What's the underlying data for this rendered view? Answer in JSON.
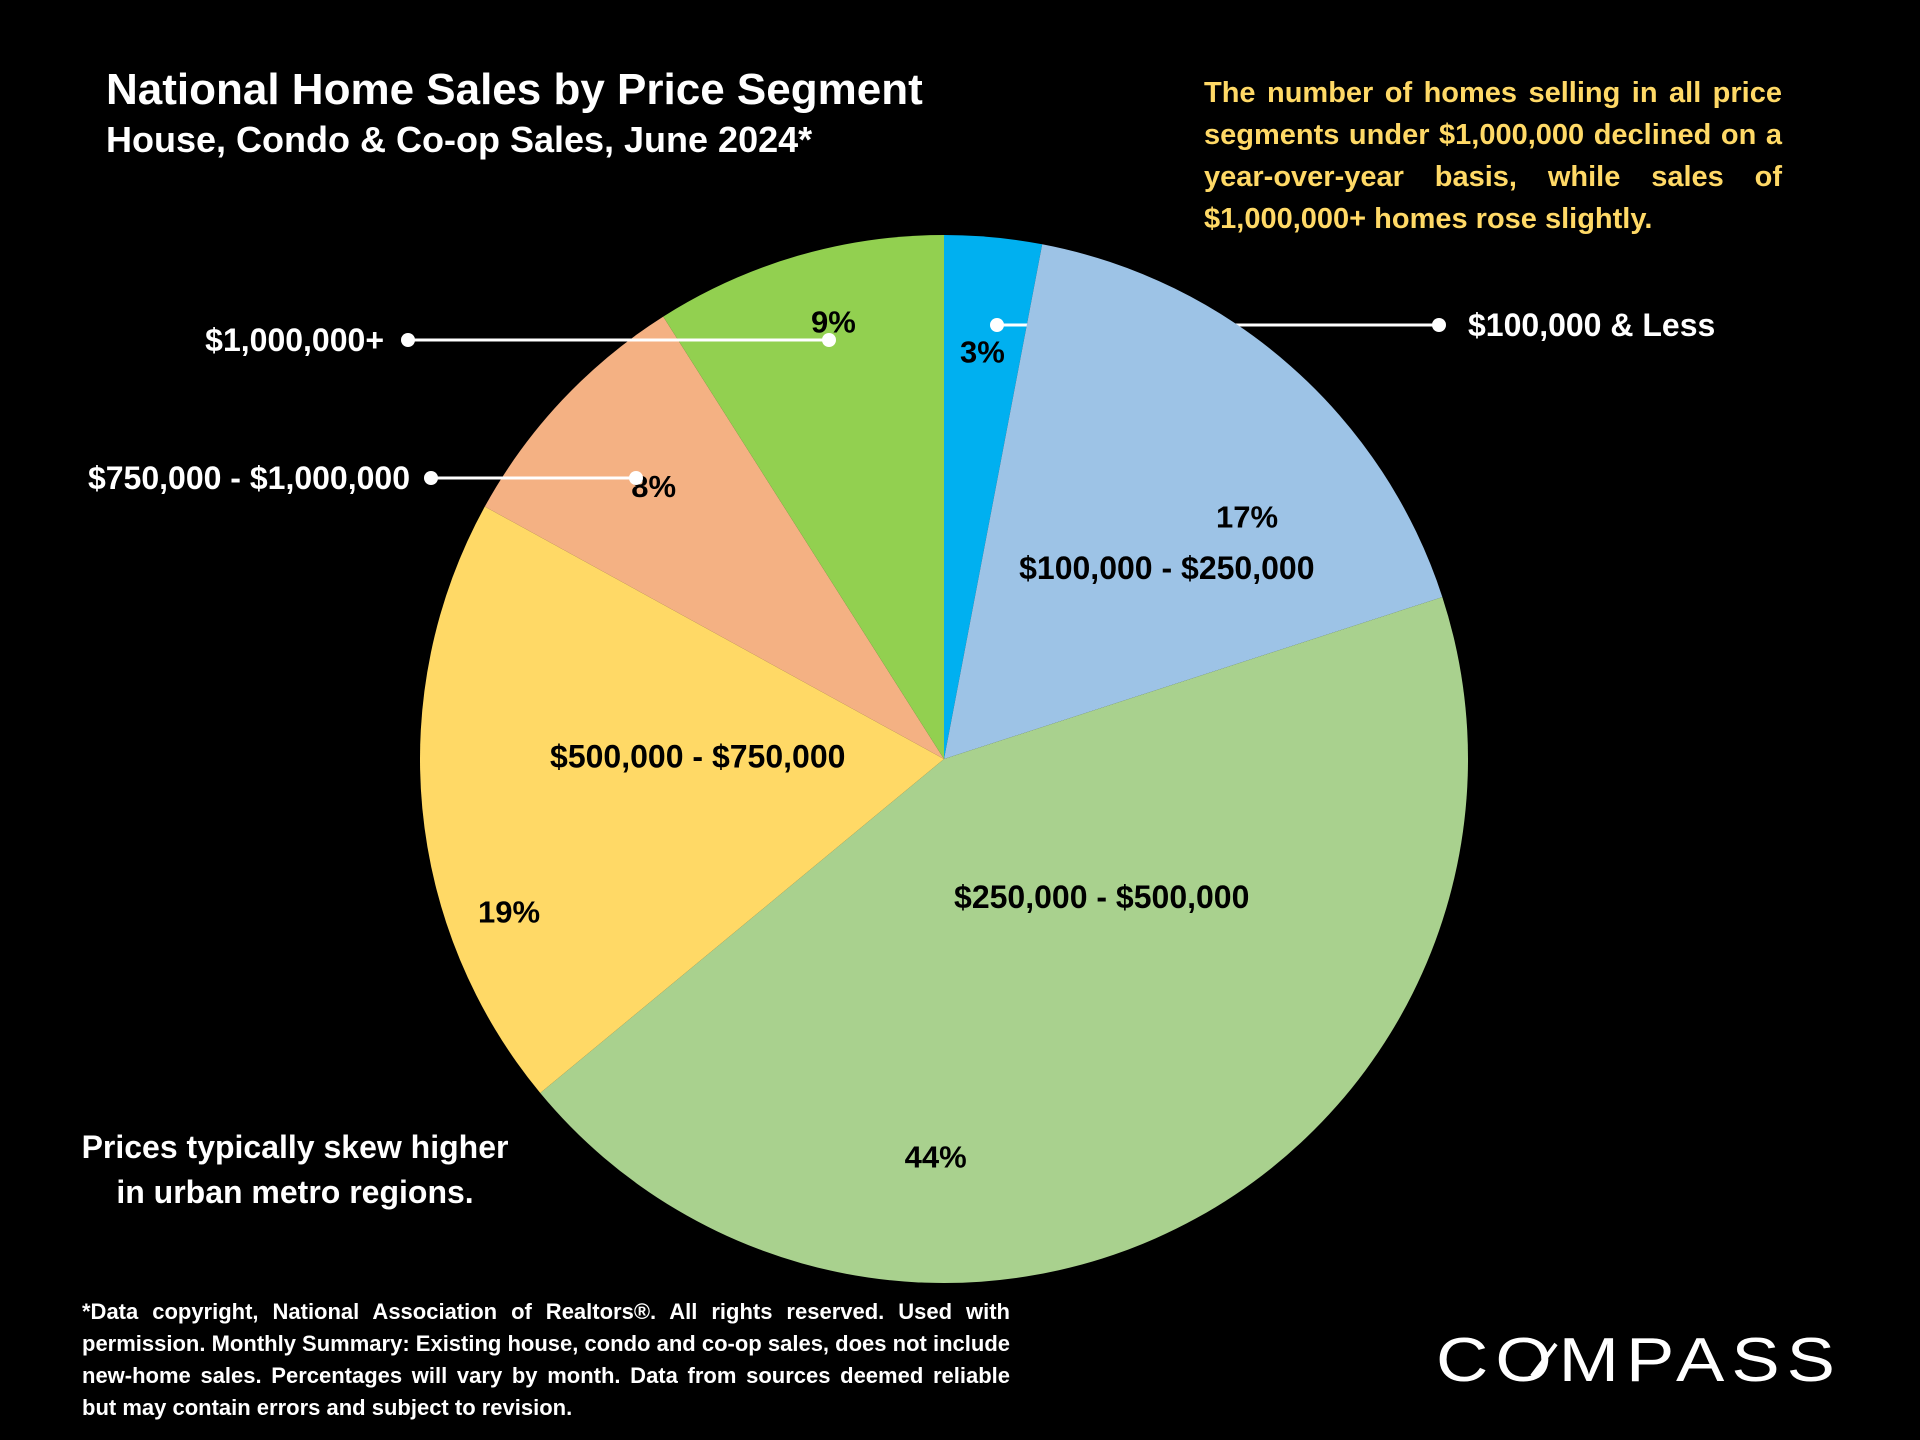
{
  "title": "National Home Sales by Price Segment",
  "subtitle": "House, Condo & Co-op Sales, June 2024*",
  "note_top": "The number of homes selling in all price segments under $1,000,000 declined on a year-over-year basis, while sales of $1,000,000+ homes rose slightly.",
  "note_urban_line1": "Prices typically skew higher",
  "note_urban_line2": "in urban metro regions.",
  "footnote": "*Data copyright, National Association of Realtors®. All rights reserved. Used with permission. Monthly Summary: Existing house, condo and co-op sales, does not include new-home sales. Percentages will vary by month. Data from sources deemed reliable but may contain errors and subject to revision.",
  "logo_text": "COMPASS",
  "colors": {
    "background": "#000000",
    "note_text": "#ffd966",
    "text": "#ffffff"
  },
  "chart_data": {
    "type": "pie",
    "start": "12 o'clock",
    "direction": "clockwise",
    "slices": [
      {
        "label": "$100,000 & Less",
        "value": 3,
        "value_label": "3%",
        "color": "#00b0f0",
        "label_style": "callout"
      },
      {
        "label": "$100,000 - $250,000",
        "value": 17,
        "value_label": "17%",
        "color": "#9dc3e6",
        "label_style": "inside"
      },
      {
        "label": "$250,000 - $500,000",
        "value": 44,
        "value_label": "44%",
        "color": "#a9d18e",
        "label_style": "inside"
      },
      {
        "label": "$500,000 - $750,000",
        "value": 19,
        "value_label": "19%",
        "color": "#ffd966",
        "label_style": "inside"
      },
      {
        "label": "$750,000 - $1,000,000",
        "value": 8,
        "value_label": "8%",
        "color": "#f4b183",
        "label_style": "callout"
      },
      {
        "label": "$1,000,000+",
        "value": 9,
        "value_label": "9%",
        "color": "#92d050",
        "label_style": "callout"
      }
    ]
  }
}
